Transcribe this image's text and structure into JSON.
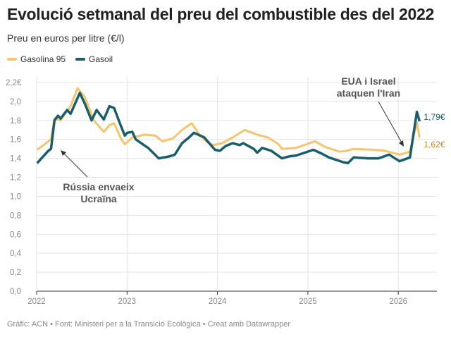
{
  "title": "Evolució setmanal del preu del combustible des del 2022",
  "subtitle": "Preu en euros per litre (€/l)",
  "footer": "Gràfic: ACN • Font: Ministeri per a la Transició Ecològica • Creat amb Datawrapper",
  "chart_data": {
    "type": "line",
    "ylim": [
      0,
      2.2
    ],
    "xlim": [
      "2022-01-01",
      "2026-04-15"
    ],
    "grid": true,
    "legend": "top-left",
    "yticks": [
      "0,0",
      "0,2",
      "0,4",
      "0,6",
      "0,8",
      "1,0",
      "1,2",
      "1,4",
      "1,6",
      "1,8",
      "2,0",
      "2,2€"
    ],
    "ytick_values": [
      0,
      0.2,
      0.4,
      0.6,
      0.8,
      1.0,
      1.2,
      1.4,
      1.6,
      1.8,
      2.0,
      2.2
    ],
    "xticks": [
      "2022",
      "2023",
      "2024",
      "2025",
      "2026"
    ],
    "annotations": [
      {
        "text": [
          "Rússia envaeix",
          "Ucraïna"
        ],
        "date": "2022-03-01"
      },
      {
        "text": [
          "EUA i Israel",
          "ataquen l'Iran"
        ],
        "date": "2026-02-28"
      }
    ],
    "series": [
      {
        "name": "Gasolina 95",
        "color": "#f5c56e",
        "end_label": "1,62€",
        "x": [
          "2022-01-03",
          "2022-02-28",
          "2022-03-14",
          "2022-04-08",
          "2022-05-18",
          "2022-06-15",
          "2022-07-14",
          "2022-08-20",
          "2022-09-29",
          "2022-10-22",
          "2022-11-10",
          "2022-12-09",
          "2022-12-23",
          "2023-01-22",
          "2023-03-13",
          "2023-04-25",
          "2023-05-23",
          "2023-07-05",
          "2023-08-11",
          "2023-09-19",
          "2023-10-18",
          "2023-11-15",
          "2023-12-14",
          "2024-01-20",
          "2024-03-02",
          "2024-04-20",
          "2024-06-10",
          "2024-07-23",
          "2024-09-04",
          "2024-09-18",
          "2024-11-14",
          "2025-01-29",
          "2025-03-13",
          "2025-05-09",
          "2025-06-06",
          "2025-07-05",
          "2025-09-29",
          "2025-11-10",
          "2026-01-06",
          "2026-02-17",
          "2026-03-17",
          "2026-03-28"
        ],
        "values": [
          1.49,
          1.6,
          1.82,
          1.8,
          1.95,
          2.14,
          2.05,
          1.8,
          1.68,
          1.75,
          1.77,
          1.6,
          1.55,
          1.62,
          1.65,
          1.64,
          1.58,
          1.61,
          1.7,
          1.77,
          1.66,
          1.58,
          1.54,
          1.56,
          1.62,
          1.7,
          1.65,
          1.62,
          1.55,
          1.5,
          1.51,
          1.58,
          1.52,
          1.47,
          1.48,
          1.5,
          1.49,
          1.48,
          1.44,
          1.47,
          1.78,
          1.62
        ]
      },
      {
        "name": "Gasoil",
        "color": "#1a5e6e",
        "end_label": "1,79€",
        "x": [
          "2022-01-03",
          "2022-02-17",
          "2022-02-28",
          "2022-03-14",
          "2022-03-28",
          "2022-04-08",
          "2022-05-04",
          "2022-05-18",
          "2022-06-24",
          "2022-07-14",
          "2022-08-11",
          "2022-08-31",
          "2022-09-29",
          "2022-10-22",
          "2022-11-10",
          "2022-12-03",
          "2022-12-23",
          "2023-01-02",
          "2023-01-22",
          "2023-02-05",
          "2023-02-27",
          "2023-03-27",
          "2023-05-09",
          "2023-06-21",
          "2023-07-13",
          "2023-08-11",
          "2023-09-08",
          "2023-09-28",
          "2023-11-09",
          "2023-12-02",
          "2023-12-22",
          "2024-01-11",
          "2024-02-03",
          "2024-03-02",
          "2024-03-31",
          "2024-04-14",
          "2024-05-27",
          "2024-06-10",
          "2024-06-30",
          "2024-08-06",
          "2024-09-18",
          "2024-10-16",
          "2024-11-14",
          "2025-01-23",
          "2025-02-26",
          "2025-03-27",
          "2025-05-23",
          "2025-06-12",
          "2025-07-05",
          "2025-08-31",
          "2025-10-13",
          "2025-11-25",
          "2026-01-06",
          "2026-02-17",
          "2026-03-17",
          "2026-03-28"
        ],
        "values": [
          1.35,
          1.48,
          1.5,
          1.8,
          1.85,
          1.82,
          1.91,
          1.87,
          2.09,
          1.98,
          1.8,
          1.91,
          1.81,
          1.95,
          1.93,
          1.77,
          1.64,
          1.67,
          1.68,
          1.6,
          1.56,
          1.51,
          1.4,
          1.42,
          1.44,
          1.56,
          1.62,
          1.67,
          1.62,
          1.55,
          1.49,
          1.48,
          1.53,
          1.56,
          1.54,
          1.56,
          1.5,
          1.46,
          1.51,
          1.48,
          1.4,
          1.42,
          1.43,
          1.49,
          1.45,
          1.41,
          1.36,
          1.35,
          1.41,
          1.4,
          1.4,
          1.44,
          1.37,
          1.41,
          1.89,
          1.79
        ]
      }
    ]
  }
}
